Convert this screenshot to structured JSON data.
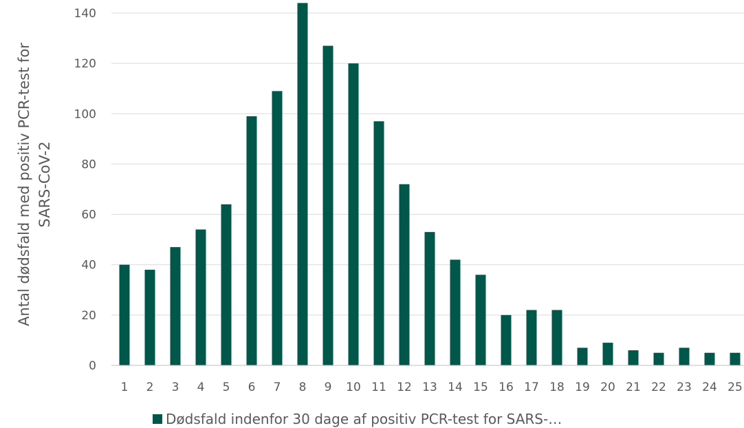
{
  "chart_data": {
    "type": "bar",
    "categories": [
      "1",
      "2",
      "3",
      "4",
      "5",
      "6",
      "7",
      "8",
      "9",
      "10",
      "11",
      "12",
      "13",
      "14",
      "15",
      "16",
      "17",
      "18",
      "19",
      "20",
      "21",
      "22",
      "23",
      "24",
      "25"
    ],
    "series": [
      {
        "name": "Dødsfald indenfor 30 dage af positiv PCR-test for SARS-…",
        "values": [
          40,
          38,
          47,
          54,
          64,
          99,
          109,
          144,
          127,
          120,
          97,
          72,
          53,
          42,
          36,
          20,
          22,
          22,
          7,
          9,
          6,
          5,
          7,
          5,
          5
        ]
      }
    ],
    "ylabel_line1": "Antal dødsfald med positiv PCR-test for",
    "ylabel_line2": "SARS-CoV-2",
    "yticks": [
      "0",
      "20",
      "40",
      "60",
      "80",
      "100",
      "120",
      "140"
    ],
    "ylim": [
      0,
      140
    ],
    "grid": true,
    "legend_position": "bottom",
    "colors": {
      "bar": "#00574A",
      "grid": "#D9D9D9",
      "axis": "#BFBFBF",
      "text": "#595959"
    }
  }
}
